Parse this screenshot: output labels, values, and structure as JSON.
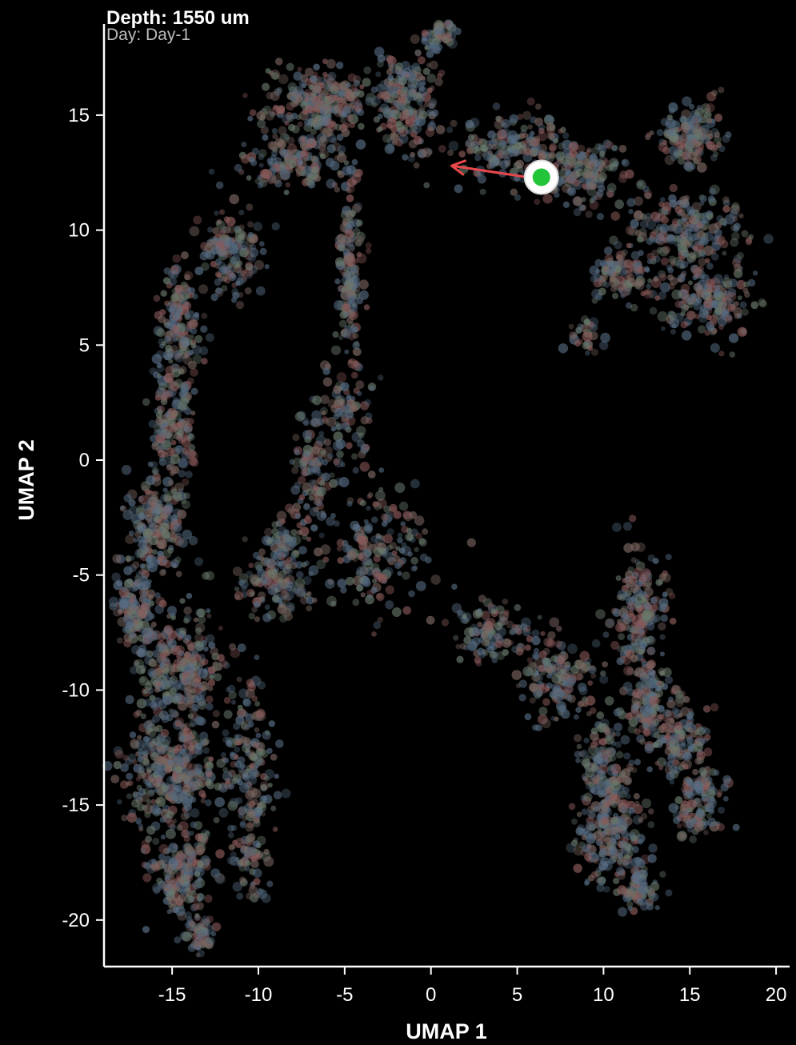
{
  "header": {
    "depth_label": "Depth: 1550 um",
    "day_label": "Day: Day-1"
  },
  "colors": {
    "background": "#000000",
    "axis": "#ffffff",
    "arrow": "#e8484d",
    "marker_fill": "#22c43a",
    "marker_ring": "#ffffff",
    "point_palette": [
      "#8a5a5a",
      "#5a6f86",
      "#6a7a6c",
      "#7a6660",
      "#4f6478"
    ]
  },
  "chart_data": {
    "type": "scatter",
    "title": "",
    "xlabel": "UMAP 1",
    "ylabel": "UMAP 2",
    "xlim": [
      -19,
      20.5
    ],
    "ylim": [
      -22,
      19
    ],
    "xticks": [
      -15,
      -10,
      -5,
      0,
      5,
      10,
      15,
      20
    ],
    "yticks": [
      -20,
      -15,
      -10,
      -5,
      0,
      5,
      10,
      15
    ],
    "xtick_labels": [
      "-15",
      "-10",
      "-5",
      "0",
      "5",
      "10",
      "15",
      "20"
    ],
    "ytick_labels": [
      "-20",
      "-15",
      "-10",
      "-5",
      "0",
      "5",
      "10",
      "15"
    ],
    "grid": false,
    "highlight_point": {
      "x": 6.4,
      "y": 12.3
    },
    "arrow": {
      "from": {
        "x": 5.6,
        "y": 12.3
      },
      "to": {
        "x": 1.2,
        "y": 12.8
      }
    },
    "point_clusters": [
      {
        "x": 0.5,
        "y": 18.5,
        "sx": 0.8,
        "sy": 0.6,
        "n": 60
      },
      {
        "x": -6.5,
        "y": 15.5,
        "sx": 2.5,
        "sy": 1.2,
        "n": 280
      },
      {
        "x": -1.5,
        "y": 15.5,
        "sx": 1.5,
        "sy": 2.0,
        "n": 200
      },
      {
        "x": -8.0,
        "y": 13.0,
        "sx": 2.5,
        "sy": 1.0,
        "n": 160
      },
      {
        "x": 4.5,
        "y": 13.5,
        "sx": 2.5,
        "sy": 1.2,
        "n": 180
      },
      {
        "x": 9.0,
        "y": 12.5,
        "sx": 2.0,
        "sy": 1.2,
        "n": 180
      },
      {
        "x": 15.0,
        "y": 14.0,
        "sx": 1.5,
        "sy": 1.2,
        "n": 150
      },
      {
        "x": 14.5,
        "y": 10.0,
        "sx": 3.0,
        "sy": 1.5,
        "n": 220
      },
      {
        "x": 16.0,
        "y": 7.0,
        "sx": 2.2,
        "sy": 1.3,
        "n": 180
      },
      {
        "x": 11.0,
        "y": 8.0,
        "sx": 1.5,
        "sy": 1.0,
        "n": 100
      },
      {
        "x": -4.7,
        "y": 8.0,
        "sx": 0.6,
        "sy": 3.0,
        "n": 160
      },
      {
        "x": -11.5,
        "y": 9.0,
        "sx": 1.5,
        "sy": 1.5,
        "n": 150
      },
      {
        "x": -14.5,
        "y": 6.0,
        "sx": 1.0,
        "sy": 2.0,
        "n": 150
      },
      {
        "x": -15.0,
        "y": 1.5,
        "sx": 1.0,
        "sy": 2.5,
        "n": 180
      },
      {
        "x": -16.0,
        "y": -3.0,
        "sx": 1.3,
        "sy": 2.0,
        "n": 200
      },
      {
        "x": -17.0,
        "y": -6.5,
        "sx": 1.0,
        "sy": 1.5,
        "n": 120
      },
      {
        "x": -14.5,
        "y": -9.0,
        "sx": 2.0,
        "sy": 2.0,
        "n": 280
      },
      {
        "x": -15.0,
        "y": -13.5,
        "sx": 2.2,
        "sy": 2.0,
        "n": 380
      },
      {
        "x": -14.5,
        "y": -18.0,
        "sx": 1.5,
        "sy": 1.5,
        "n": 180
      },
      {
        "x": -13.5,
        "y": -20.5,
        "sx": 0.8,
        "sy": 0.7,
        "n": 60
      },
      {
        "x": -10.5,
        "y": -13.0,
        "sx": 1.2,
        "sy": 3.0,
        "n": 160
      },
      {
        "x": -10.5,
        "y": -17.5,
        "sx": 1.0,
        "sy": 1.2,
        "n": 60
      },
      {
        "x": -9.0,
        "y": -5.5,
        "sx": 2.0,
        "sy": 1.2,
        "n": 120
      },
      {
        "x": -7.0,
        "y": -0.5,
        "sx": 1.0,
        "sy": 2.0,
        "n": 100
      },
      {
        "x": -8.5,
        "y": -3.5,
        "sx": 1.0,
        "sy": 1.0,
        "n": 60
      },
      {
        "x": -3.0,
        "y": -4.0,
        "sx": 2.5,
        "sy": 2.0,
        "n": 180
      },
      {
        "x": -5.0,
        "y": 1.5,
        "sx": 1.8,
        "sy": 2.5,
        "n": 100
      },
      {
        "x": 3.5,
        "y": -7.5,
        "sx": 2.0,
        "sy": 1.0,
        "n": 120
      },
      {
        "x": 7.5,
        "y": -9.5,
        "sx": 1.8,
        "sy": 1.5,
        "n": 150
      },
      {
        "x": 12.0,
        "y": -6.5,
        "sx": 1.3,
        "sy": 2.0,
        "n": 160
      },
      {
        "x": 12.5,
        "y": -10.5,
        "sx": 1.0,
        "sy": 2.0,
        "n": 160
      },
      {
        "x": 10.0,
        "y": -13.5,
        "sx": 1.2,
        "sy": 1.8,
        "n": 150
      },
      {
        "x": 14.5,
        "y": -12.0,
        "sx": 1.3,
        "sy": 1.5,
        "n": 130
      },
      {
        "x": 15.5,
        "y": -15.0,
        "sx": 1.2,
        "sy": 1.2,
        "n": 120
      },
      {
        "x": 10.5,
        "y": -16.5,
        "sx": 1.5,
        "sy": 1.5,
        "n": 200
      },
      {
        "x": 12.0,
        "y": -18.5,
        "sx": 1.0,
        "sy": 0.8,
        "n": 70
      },
      {
        "x": 9.0,
        "y": 5.5,
        "sx": 0.8,
        "sy": 0.8,
        "n": 30
      }
    ]
  }
}
